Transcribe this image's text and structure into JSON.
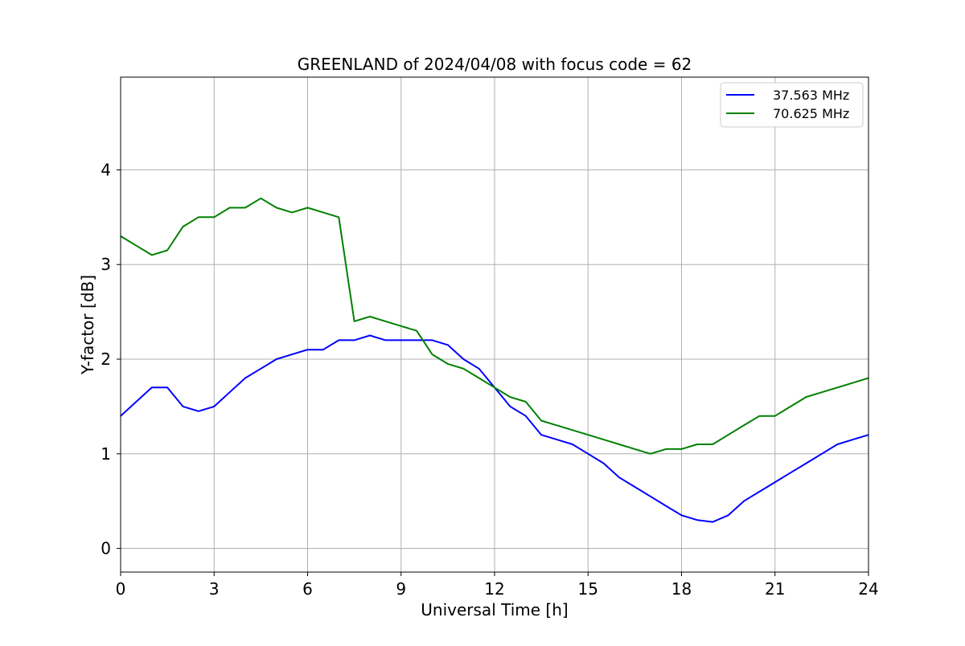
{
  "chart_data": {
    "type": "line",
    "title": "GREENLAND of 2024/04/08 with focus code = 62",
    "xlabel": "Universal Time [h]",
    "ylabel": "Y-factor [dB]",
    "xlim": [
      0,
      24
    ],
    "ylim": [
      -0.25,
      4.98
    ],
    "xticks": [
      "0",
      "3",
      "6",
      "9",
      "12",
      "15",
      "18",
      "21",
      "24"
    ],
    "yticks": [
      "0",
      "1",
      "2",
      "3",
      "4"
    ],
    "grid": true,
    "legend_position": "top-right",
    "series": [
      {
        "name": "37.563 MHz",
        "color": "#0000ff",
        "x": [
          0,
          0.5,
          1,
          1.5,
          2,
          2.5,
          3,
          3.5,
          4,
          4.5,
          5,
          5.5,
          6,
          6.5,
          7,
          7.5,
          8,
          8.5,
          9,
          9.5,
          10,
          10.5,
          11,
          11.5,
          12,
          12.5,
          13,
          13.5,
          14,
          14.5,
          15,
          15.5,
          16,
          16.5,
          17,
          17.5,
          18,
          18.5,
          19,
          19.5,
          20,
          20.5,
          21,
          21.5,
          22,
          22.5,
          23,
          23.5,
          24
        ],
        "y": [
          1.4,
          1.55,
          1.7,
          1.7,
          1.5,
          1.45,
          1.5,
          1.65,
          1.8,
          1.9,
          2.0,
          2.05,
          2.1,
          2.1,
          2.2,
          2.2,
          2.25,
          2.2,
          2.2,
          2.2,
          2.2,
          2.15,
          2.0,
          1.9,
          1.7,
          1.5,
          1.4,
          1.2,
          1.15,
          1.1,
          1.0,
          0.9,
          0.75,
          0.65,
          0.55,
          0.45,
          0.35,
          0.3,
          0.28,
          0.35,
          0.5,
          0.6,
          0.7,
          0.8,
          0.9,
          1.0,
          1.1,
          1.15,
          1.2
        ]
      },
      {
        "name": "70.625 MHz",
        "color": "#008000",
        "x": [
          0,
          0.5,
          1,
          1.5,
          2,
          2.5,
          3,
          3.5,
          4,
          4.5,
          5,
          5.5,
          6,
          6.5,
          7,
          7.5,
          8,
          8.5,
          9,
          9.5,
          10,
          10.5,
          11,
          11.5,
          12,
          12.5,
          13,
          13.5,
          14,
          14.5,
          15,
          15.5,
          16,
          16.5,
          17,
          17.5,
          18,
          18.5,
          19,
          19.5,
          20,
          20.5,
          21,
          21.5,
          22,
          22.5,
          23,
          23.5,
          24
        ],
        "y": [
          3.3,
          3.2,
          3.1,
          3.15,
          3.4,
          3.5,
          3.5,
          3.6,
          3.6,
          3.7,
          3.6,
          3.55,
          3.6,
          3.55,
          3.5,
          2.4,
          2.45,
          2.4,
          2.35,
          2.3,
          2.05,
          1.95,
          1.9,
          1.8,
          1.7,
          1.6,
          1.55,
          1.35,
          1.3,
          1.25,
          1.2,
          1.15,
          1.1,
          1.05,
          1.0,
          1.05,
          1.05,
          1.1,
          1.1,
          1.2,
          1.3,
          1.4,
          1.4,
          1.5,
          1.6,
          1.65,
          1.7,
          1.75,
          1.8
        ]
      }
    ]
  }
}
